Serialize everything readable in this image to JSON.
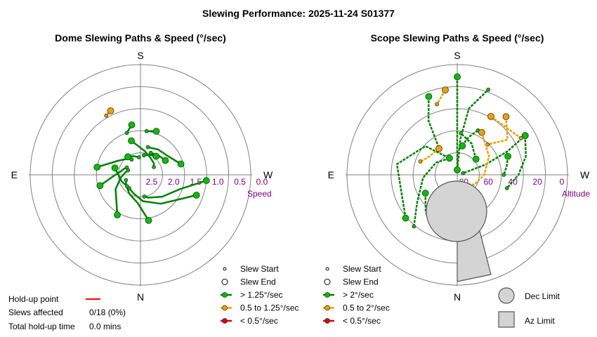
{
  "page": {
    "title": "Slewing Performance: 2025-11-24 S01377"
  },
  "holdup": {
    "label_point": "Hold-up point",
    "label_slews": "Slews affected",
    "slews_value": "0/18 (0%)",
    "label_total": "Total hold-up time",
    "total_value": "0.0 mins",
    "line_color": "#ff0000"
  },
  "colors": {
    "fast": "#00c000",
    "fast_path": "#008000",
    "medium": "#f0a000",
    "slow": "#e00000",
    "grid": "#808080",
    "tick": "#800080",
    "limit_fill": "#d4d4d4"
  },
  "chart_data": [
    {
      "type": "scatter",
      "subtype": "polar",
      "title": "Dome Slewing Paths & Speed (°/sec)",
      "directions": {
        "top": "S",
        "left": "E",
        "right": "W",
        "bottom": "N"
      },
      "radial_axis_label": "Speed",
      "radial_ticks": [
        "2.5",
        "2.0",
        "1.5",
        "1.0",
        "0.5",
        "0.0"
      ],
      "radial_tick_values": [
        2.5,
        2.0,
        1.5,
        1.0,
        0.5,
        0.0
      ],
      "radial_range": [
        0.0,
        2.5
      ],
      "legend": {
        "start": "Slew Start",
        "end": "Slew End",
        "fast": "> 1.25°/sec",
        "medium": "0.5 to 1.25°/sec",
        "slow": "< 0.5°/sec"
      },
      "slews": [
        {
          "az": [
            80,
            58,
            45,
            35,
            30
          ],
          "speed": [
            1.5,
            1.9,
            2.0,
            2.05,
            2.1
          ],
          "class": "fast"
        },
        {
          "az": [
            105,
            92,
            80,
            70,
            62
          ],
          "speed": [
            1.55,
            1.9,
            2.05,
            2.1,
            2.15
          ],
          "class": "fast"
        },
        {
          "az": [
            150,
            120,
            98,
            82,
            70
          ],
          "speed": [
            1.45,
            1.85,
            2.05,
            2.15,
            2.2
          ],
          "class": "fast"
        },
        {
          "az": [
            190,
            175,
            150,
            125,
            110
          ],
          "speed": [
            1.45,
            1.85,
            2.0,
            2.1,
            2.15
          ],
          "class": "fast"
        },
        {
          "az": [
            250,
            215,
            185,
            160,
            140
          ],
          "speed": [
            1.15,
            1.7,
            1.9,
            2.05,
            2.1
          ],
          "class": "fast"
        },
        {
          "az": [
            265,
            250,
            225,
            200,
            190
          ],
          "speed": [
            1.0,
            1.55,
            1.8,
            1.95,
            2.0
          ],
          "class": "fast"
        },
        {
          "az": [
            15,
            350,
            330,
            310,
            300
          ],
          "speed": [
            1.7,
            1.95,
            2.05,
            2.1,
            2.15
          ],
          "class": "fast"
        },
        {
          "az": [
            285,
            305,
            325,
            345
          ],
          "speed": [
            1.55,
            1.75,
            1.8,
            1.85
          ],
          "class": "fast"
        },
        {
          "az": [
            300,
            318,
            335
          ],
          "speed": [
            1.85,
            1.9,
            1.95
          ],
          "class": "fast"
        },
        {
          "az": [
            320,
            335,
            350
          ],
          "speed": [
            1.95,
            2.0,
            2.05
          ],
          "class": "fast"
        },
        {
          "az": [
            75,
            90,
            110,
            130
          ],
          "speed": [
            1.9,
            2.0,
            2.05,
            2.1
          ],
          "class": "fast"
        },
        {
          "az": [
            35,
            20,
            5
          ],
          "speed": [
            2.0,
            2.05,
            2.1
          ],
          "class": "fast"
        },
        {
          "az": [
            340,
            352
          ],
          "speed": [
            1.45,
            1.5
          ],
          "class": "fast"
        },
        {
          "az": [
            10,
            18
          ],
          "speed": [
            1.35,
            1.5
          ],
          "class": "fast"
        },
        {
          "az": [
            25,
            30
          ],
          "speed": [
            0.9,
            0.95
          ],
          "class": "medium"
        }
      ]
    },
    {
      "type": "scatter",
      "subtype": "polar",
      "title": "Scope Slewing Paths & Speed (°/sec)",
      "directions": {
        "top": "S",
        "left": "E",
        "right": "W",
        "bottom": "N"
      },
      "radial_axis_label": "Altitude",
      "radial_ticks": [
        "80",
        "60",
        "40",
        "20",
        "0"
      ],
      "radial_tick_values": [
        80,
        60,
        40,
        20,
        0
      ],
      "radial_range": [
        90,
        0
      ],
      "limits": {
        "dec_label": "Dec Limit",
        "az_label": "Az Limit"
      },
      "legend": {
        "start": "Slew Start",
        "end": "Slew End",
        "fast": "> 2°/sec",
        "medium": "0.5 to 2°/sec",
        "slow": "< 0.5°/sec"
      },
      "slews": [
        {
          "az": [
            0,
            0,
            0,
            0
          ],
          "alt": [
            10,
            30,
            55,
            86
          ],
          "class": "fast"
        },
        {
          "az": [
            0,
            355,
            350,
            340
          ],
          "alt": [
            86,
            60,
            35,
            16
          ],
          "class": "fast"
        },
        {
          "az": [
            350,
            345,
            340,
            335
          ],
          "alt": [
            66,
            60,
            55,
            50
          ],
          "class": "fast"
        },
        {
          "az": [
            300,
            295,
            290,
            285
          ],
          "alt": [
            26,
            45,
            65,
            85
          ],
          "class": "fast"
        },
        {
          "az": [
            300,
            285,
            270,
            255
          ],
          "alt": [
            26,
            32,
            40,
            48
          ],
          "class": "fast"
        },
        {
          "az": [
            290,
            280,
            270
          ],
          "alt": [
            46,
            49,
            52
          ],
          "class": "fast"
        },
        {
          "az": [
            310,
            335,
            355
          ],
          "alt": [
            70,
            62,
            56
          ],
          "class": "fast"
        },
        {
          "az": [
            120,
            140,
            155
          ],
          "alt": [
            60,
            50,
            45
          ],
          "class": "fast"
        },
        {
          "az": [
            130,
            80,
            48,
            25
          ],
          "alt": [
            35,
            40,
            55,
            75
          ],
          "class": "fast"
        },
        {
          "az": [
            25,
            60,
            95,
            125,
            140
          ],
          "alt": [
            75,
            70,
            62,
            50,
            35
          ],
          "class": "fast"
        },
        {
          "az": [
            20,
            28,
            35
          ],
          "alt": [
            22,
            40,
            65
          ],
          "class": "fast"
        },
        {
          "az": [
            320,
            305,
            315
          ],
          "alt": [
            28,
            40,
            55
          ],
          "class": "medium"
        },
        {
          "az": [
            35,
            60,
            70
          ],
          "alt": [
            64,
            62,
            58
          ],
          "class": "medium"
        },
        {
          "az": [
            330,
            300,
            270,
            240,
            210
          ],
          "alt": [
            50,
            60,
            68,
            74,
            82
          ],
          "class": "medium"
        },
        {
          "az": [
            8,
            16
          ],
          "alt": [
            20,
            30
          ],
          "class": "medium"
        },
        {
          "az": [
            330,
            300
          ],
          "alt": [
            35,
            30
          ],
          "class": "medium"
        }
      ]
    }
  ]
}
